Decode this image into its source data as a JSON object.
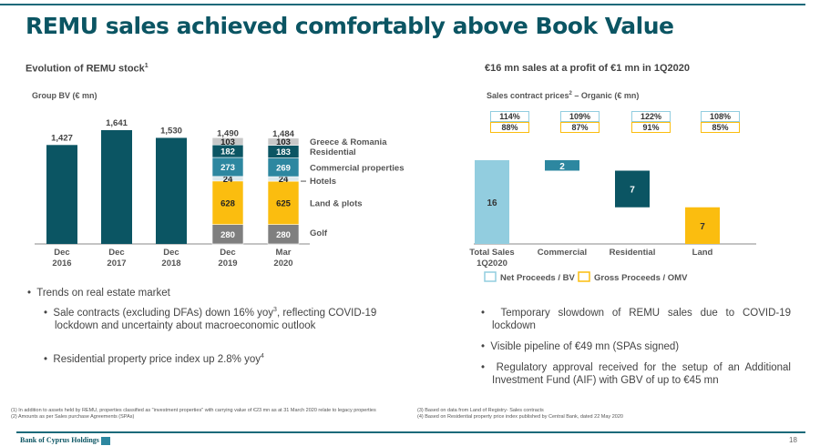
{
  "title": "REMU sales achieved comfortably above Book Value",
  "left": {
    "heading": "Evolution of REMU stock",
    "heading_sup": "1",
    "subheading": "Group BV (€ mn)"
  },
  "right": {
    "heading": "€16 mn sales at a profit of €1 mn in 1Q2020",
    "subheading": "Sales contract prices",
    "subheading_sup": "2",
    "subheading_tail": " – Organic (€ mn)"
  },
  "chart_data": [
    {
      "type": "bar",
      "title": "Group BV (€ mn)",
      "categories": [
        "Dec 2016",
        "Dec 2017",
        "Dec 2018",
        "Dec 2019",
        "Mar 2020"
      ],
      "totals": [
        "1,427",
        "1,641",
        "1,530",
        "1,490",
        "1,484"
      ],
      "values": [
        1427,
        1641,
        1530,
        1490,
        1484
      ],
      "series": [
        {
          "name": "Golf",
          "color": "#7f7f7f",
          "values": [
            null,
            null,
            null,
            280,
            280
          ]
        },
        {
          "name": "Land & plots",
          "color": "#fbbd0f",
          "values": [
            null,
            null,
            null,
            628,
            625
          ]
        },
        {
          "name": "Hotels",
          "color": "#dbe8ec",
          "values": [
            null,
            null,
            null,
            24,
            24
          ]
        },
        {
          "name": "Commercial properties",
          "color": "#2d87a0",
          "values": [
            null,
            null,
            null,
            273,
            269
          ]
        },
        {
          "name": "Residential",
          "color": "#0b5563",
          "values": [
            null,
            null,
            null,
            182,
            183
          ]
        },
        {
          "name": "Greece & Romania",
          "color": "#c8c8c8",
          "values": [
            null,
            null,
            null,
            103,
            103
          ]
        }
      ],
      "bar_color": "#0b5563"
    },
    {
      "type": "bar",
      "subtype": "waterfall",
      "title": "Sales contract prices – Organic (€ mn)",
      "categories": [
        "Total Sales 1Q2020",
        "Commercial",
        "Residential",
        "Land"
      ],
      "values": [
        16,
        2,
        7,
        7
      ],
      "colors": [
        "#92cddf",
        "#2d87a0",
        "#0b5563",
        "#fbbd0f"
      ],
      "net_proceeds_bv": [
        "114%",
        "109%",
        "122%",
        "108%"
      ],
      "gross_proceeds_omv": [
        "88%",
        "87%",
        "91%",
        "85%"
      ],
      "legend": [
        "Net Proceeds / BV",
        "Gross Proceeds / OMV"
      ],
      "legend_colors": [
        "#92cddf",
        "#fbbd0f"
      ]
    }
  ],
  "bullets_left": {
    "main": "Trends on real estate market",
    "b1": "Sale contracts (excluding DFAs) down 16% yoy",
    "b1_sup": "3",
    "b1_tail": ", reflecting COVID-19 lockdown and uncertainty about macroeconomic outlook",
    "b2": "Residential property price index up 2.8% yoy",
    "b2_sup": "4"
  },
  "bullets_right": [
    "Temporary slowdown of REMU sales due to COVID-19 lockdown",
    "Visible pipeline of €49 mn (SPAs signed)",
    "Regulatory approval received for the setup of an Additional Investment Fund (AIF) with GBV of up to €45 mn"
  ],
  "footnotes": {
    "f1": "(1)  In addition to assets held by REMU, properties classified as \"investment properties\" with carrying value of €23 mn as at 31 March 2020 relate to legacy properties",
    "f2": "(2)  Amounts as per Sales purchase Agreements (SPAs)",
    "f3": "(3)  Based on data from Land of Registry- Sales contracts",
    "f4": "(4)  Based on Residential property price index published by Central Bank, dated 22 May 2020"
  },
  "footer": {
    "brand": "Bank of Cyprus Holdings",
    "page": "18"
  }
}
